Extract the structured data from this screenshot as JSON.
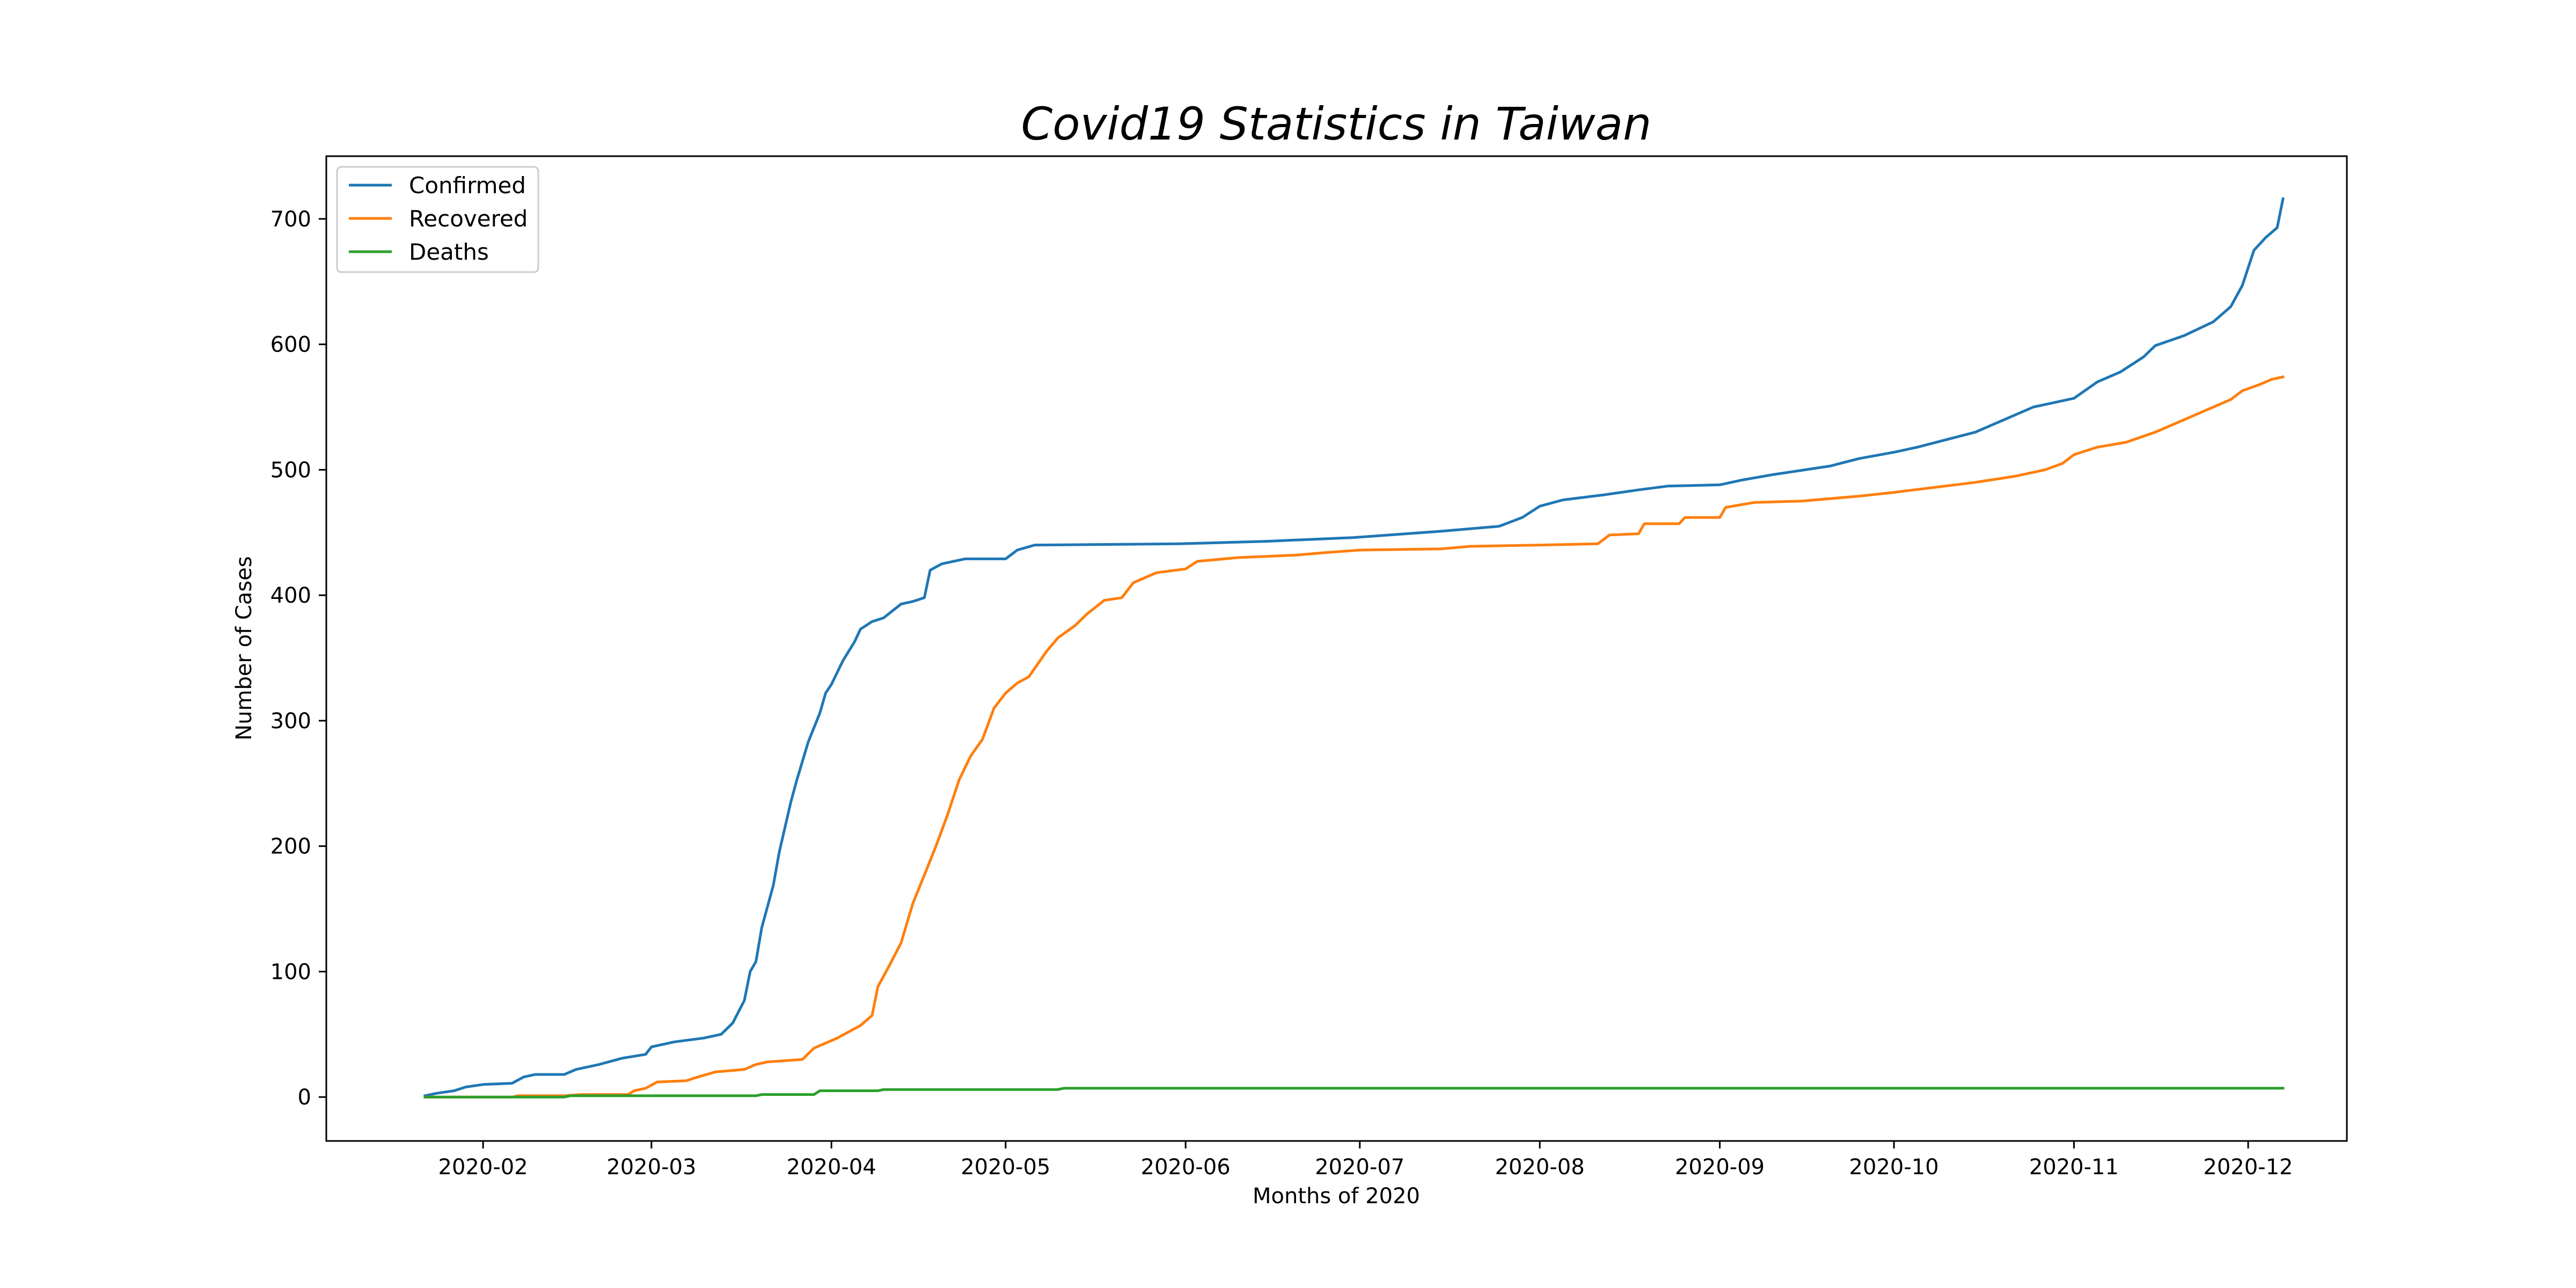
{
  "chart_data": {
    "type": "line",
    "title": "Covid19 Statistics in Taiwan",
    "xlabel": "Months of 2020",
    "ylabel": "Number of Cases",
    "xlim": [
      "2020-01-05",
      "2020-12-18"
    ],
    "ylim": [
      -35,
      750
    ],
    "x_ticks": [
      "2020-02",
      "2020-03",
      "2020-04",
      "2020-05",
      "2020-06",
      "2020-07",
      "2020-08",
      "2020-09",
      "2020-10",
      "2020-11",
      "2020-12"
    ],
    "y_ticks": [
      0,
      100,
      200,
      300,
      400,
      500,
      600,
      700
    ],
    "grid": false,
    "legend_position": "top-left",
    "series": [
      {
        "name": "Confirmed",
        "color": "#1f77b4",
        "points": [
          [
            "2020-01-22",
            1
          ],
          [
            "2020-01-24",
            3
          ],
          [
            "2020-01-27",
            5
          ],
          [
            "2020-01-29",
            8
          ],
          [
            "2020-02-01",
            10
          ],
          [
            "2020-02-06",
            11
          ],
          [
            "2020-02-08",
            16
          ],
          [
            "2020-02-10",
            18
          ],
          [
            "2020-02-15",
            18
          ],
          [
            "2020-02-17",
            22
          ],
          [
            "2020-02-21",
            26
          ],
          [
            "2020-02-25",
            31
          ],
          [
            "2020-02-29",
            34
          ],
          [
            "2020-03-01",
            40
          ],
          [
            "2020-03-05",
            44
          ],
          [
            "2020-03-10",
            47
          ],
          [
            "2020-03-13",
            50
          ],
          [
            "2020-03-15",
            59
          ],
          [
            "2020-03-17",
            77
          ],
          [
            "2020-03-18",
            100
          ],
          [
            "2020-03-19",
            108
          ],
          [
            "2020-03-20",
            135
          ],
          [
            "2020-03-22",
            169
          ],
          [
            "2020-03-23",
            195
          ],
          [
            "2020-03-24",
            215
          ],
          [
            "2020-03-25",
            235
          ],
          [
            "2020-03-26",
            252
          ],
          [
            "2020-03-28",
            283
          ],
          [
            "2020-03-30",
            306
          ],
          [
            "2020-03-31",
            322
          ],
          [
            "2020-04-01",
            329
          ],
          [
            "2020-04-03",
            348
          ],
          [
            "2020-04-05",
            363
          ],
          [
            "2020-04-06",
            373
          ],
          [
            "2020-04-08",
            379
          ],
          [
            "2020-04-10",
            382
          ],
          [
            "2020-04-13",
            393
          ],
          [
            "2020-04-15",
            395
          ],
          [
            "2020-04-17",
            398
          ],
          [
            "2020-04-18",
            420
          ],
          [
            "2020-04-20",
            425
          ],
          [
            "2020-04-24",
            429
          ],
          [
            "2020-05-01",
            429
          ],
          [
            "2020-05-03",
            436
          ],
          [
            "2020-05-06",
            440
          ],
          [
            "2020-05-31",
            441
          ],
          [
            "2020-06-15",
            443
          ],
          [
            "2020-06-30",
            446
          ],
          [
            "2020-07-15",
            451
          ],
          [
            "2020-07-25",
            455
          ],
          [
            "2020-07-29",
            462
          ],
          [
            "2020-08-01",
            471
          ],
          [
            "2020-08-05",
            476
          ],
          [
            "2020-08-12",
            480
          ],
          [
            "2020-08-18",
            484
          ],
          [
            "2020-08-23",
            487
          ],
          [
            "2020-09-01",
            488
          ],
          [
            "2020-09-05",
            492
          ],
          [
            "2020-09-10",
            496
          ],
          [
            "2020-09-20",
            503
          ],
          [
            "2020-09-25",
            509
          ],
          [
            "2020-10-01",
            514
          ],
          [
            "2020-10-05",
            518
          ],
          [
            "2020-10-10",
            524
          ],
          [
            "2020-10-15",
            530
          ],
          [
            "2020-10-20",
            540
          ],
          [
            "2020-10-25",
            550
          ],
          [
            "2020-11-01",
            557
          ],
          [
            "2020-11-05",
            570
          ],
          [
            "2020-11-09",
            578
          ],
          [
            "2020-11-13",
            590
          ],
          [
            "2020-11-15",
            599
          ],
          [
            "2020-11-20",
            607
          ],
          [
            "2020-11-25",
            618
          ],
          [
            "2020-11-28",
            630
          ],
          [
            "2020-11-30",
            647
          ],
          [
            "2020-12-02",
            675
          ],
          [
            "2020-12-04",
            685
          ],
          [
            "2020-12-06",
            693
          ],
          [
            "2020-12-07",
            716
          ]
        ]
      },
      {
        "name": "Recovered",
        "color": "#ff7f0e",
        "points": [
          [
            "2020-01-22",
            0
          ],
          [
            "2020-02-06",
            0
          ],
          [
            "2020-02-07",
            1
          ],
          [
            "2020-02-15",
            1
          ],
          [
            "2020-02-18",
            2
          ],
          [
            "2020-02-26",
            2
          ],
          [
            "2020-02-27",
            5
          ],
          [
            "2020-02-29",
            7
          ],
          [
            "2020-03-02",
            12
          ],
          [
            "2020-03-07",
            13
          ],
          [
            "2020-03-09",
            16
          ],
          [
            "2020-03-12",
            20
          ],
          [
            "2020-03-17",
            22
          ],
          [
            "2020-03-19",
            26
          ],
          [
            "2020-03-21",
            28
          ],
          [
            "2020-03-27",
            30
          ],
          [
            "2020-03-29",
            39
          ],
          [
            "2020-04-02",
            47
          ],
          [
            "2020-04-04",
            52
          ],
          [
            "2020-04-06",
            57
          ],
          [
            "2020-04-08",
            65
          ],
          [
            "2020-04-09",
            88
          ],
          [
            "2020-04-11",
            105
          ],
          [
            "2020-04-13",
            123
          ],
          [
            "2020-04-15",
            154
          ],
          [
            "2020-04-17",
            177
          ],
          [
            "2020-04-19",
            200
          ],
          [
            "2020-04-21",
            225
          ],
          [
            "2020-04-23",
            253
          ],
          [
            "2020-04-25",
            272
          ],
          [
            "2020-04-27",
            285
          ],
          [
            "2020-04-29",
            310
          ],
          [
            "2020-05-01",
            322
          ],
          [
            "2020-05-03",
            330
          ],
          [
            "2020-05-05",
            335
          ],
          [
            "2020-05-08",
            355
          ],
          [
            "2020-05-10",
            366
          ],
          [
            "2020-05-13",
            376
          ],
          [
            "2020-05-15",
            385
          ],
          [
            "2020-05-18",
            396
          ],
          [
            "2020-05-21",
            398
          ],
          [
            "2020-05-23",
            410
          ],
          [
            "2020-05-27",
            418
          ],
          [
            "2020-06-01",
            421
          ],
          [
            "2020-06-03",
            427
          ],
          [
            "2020-06-10",
            430
          ],
          [
            "2020-06-20",
            432
          ],
          [
            "2020-06-25",
            434
          ],
          [
            "2020-07-01",
            436
          ],
          [
            "2020-07-15",
            437
          ],
          [
            "2020-07-20",
            439
          ],
          [
            "2020-08-01",
            440
          ],
          [
            "2020-08-11",
            441
          ],
          [
            "2020-08-13",
            448
          ],
          [
            "2020-08-18",
            449
          ],
          [
            "2020-08-19",
            457
          ],
          [
            "2020-08-25",
            457
          ],
          [
            "2020-08-26",
            462
          ],
          [
            "2020-09-01",
            462
          ],
          [
            "2020-09-02",
            470
          ],
          [
            "2020-09-07",
            474
          ],
          [
            "2020-09-15",
            475
          ],
          [
            "2020-09-25",
            479
          ],
          [
            "2020-10-01",
            482
          ],
          [
            "2020-10-08",
            486
          ],
          [
            "2020-10-15",
            490
          ],
          [
            "2020-10-22",
            495
          ],
          [
            "2020-10-27",
            500
          ],
          [
            "2020-10-30",
            505
          ],
          [
            "2020-11-01",
            512
          ],
          [
            "2020-11-05",
            518
          ],
          [
            "2020-11-10",
            522
          ],
          [
            "2020-11-15",
            530
          ],
          [
            "2020-11-20",
            540
          ],
          [
            "2020-11-25",
            550
          ],
          [
            "2020-11-28",
            556
          ],
          [
            "2020-11-30",
            563
          ],
          [
            "2020-12-03",
            568
          ],
          [
            "2020-12-05",
            572
          ],
          [
            "2020-12-07",
            574
          ]
        ]
      },
      {
        "name": "Deaths",
        "color": "#2ca02c",
        "points": [
          [
            "2020-01-22",
            0
          ],
          [
            "2020-02-15",
            0
          ],
          [
            "2020-02-16",
            1
          ],
          [
            "2020-03-19",
            1
          ],
          [
            "2020-03-20",
            2
          ],
          [
            "2020-03-29",
            2
          ],
          [
            "2020-03-30",
            5
          ],
          [
            "2020-04-09",
            5
          ],
          [
            "2020-04-10",
            6
          ],
          [
            "2020-05-10",
            6
          ],
          [
            "2020-05-11",
            7
          ],
          [
            "2020-12-07",
            7
          ]
        ]
      }
    ]
  }
}
